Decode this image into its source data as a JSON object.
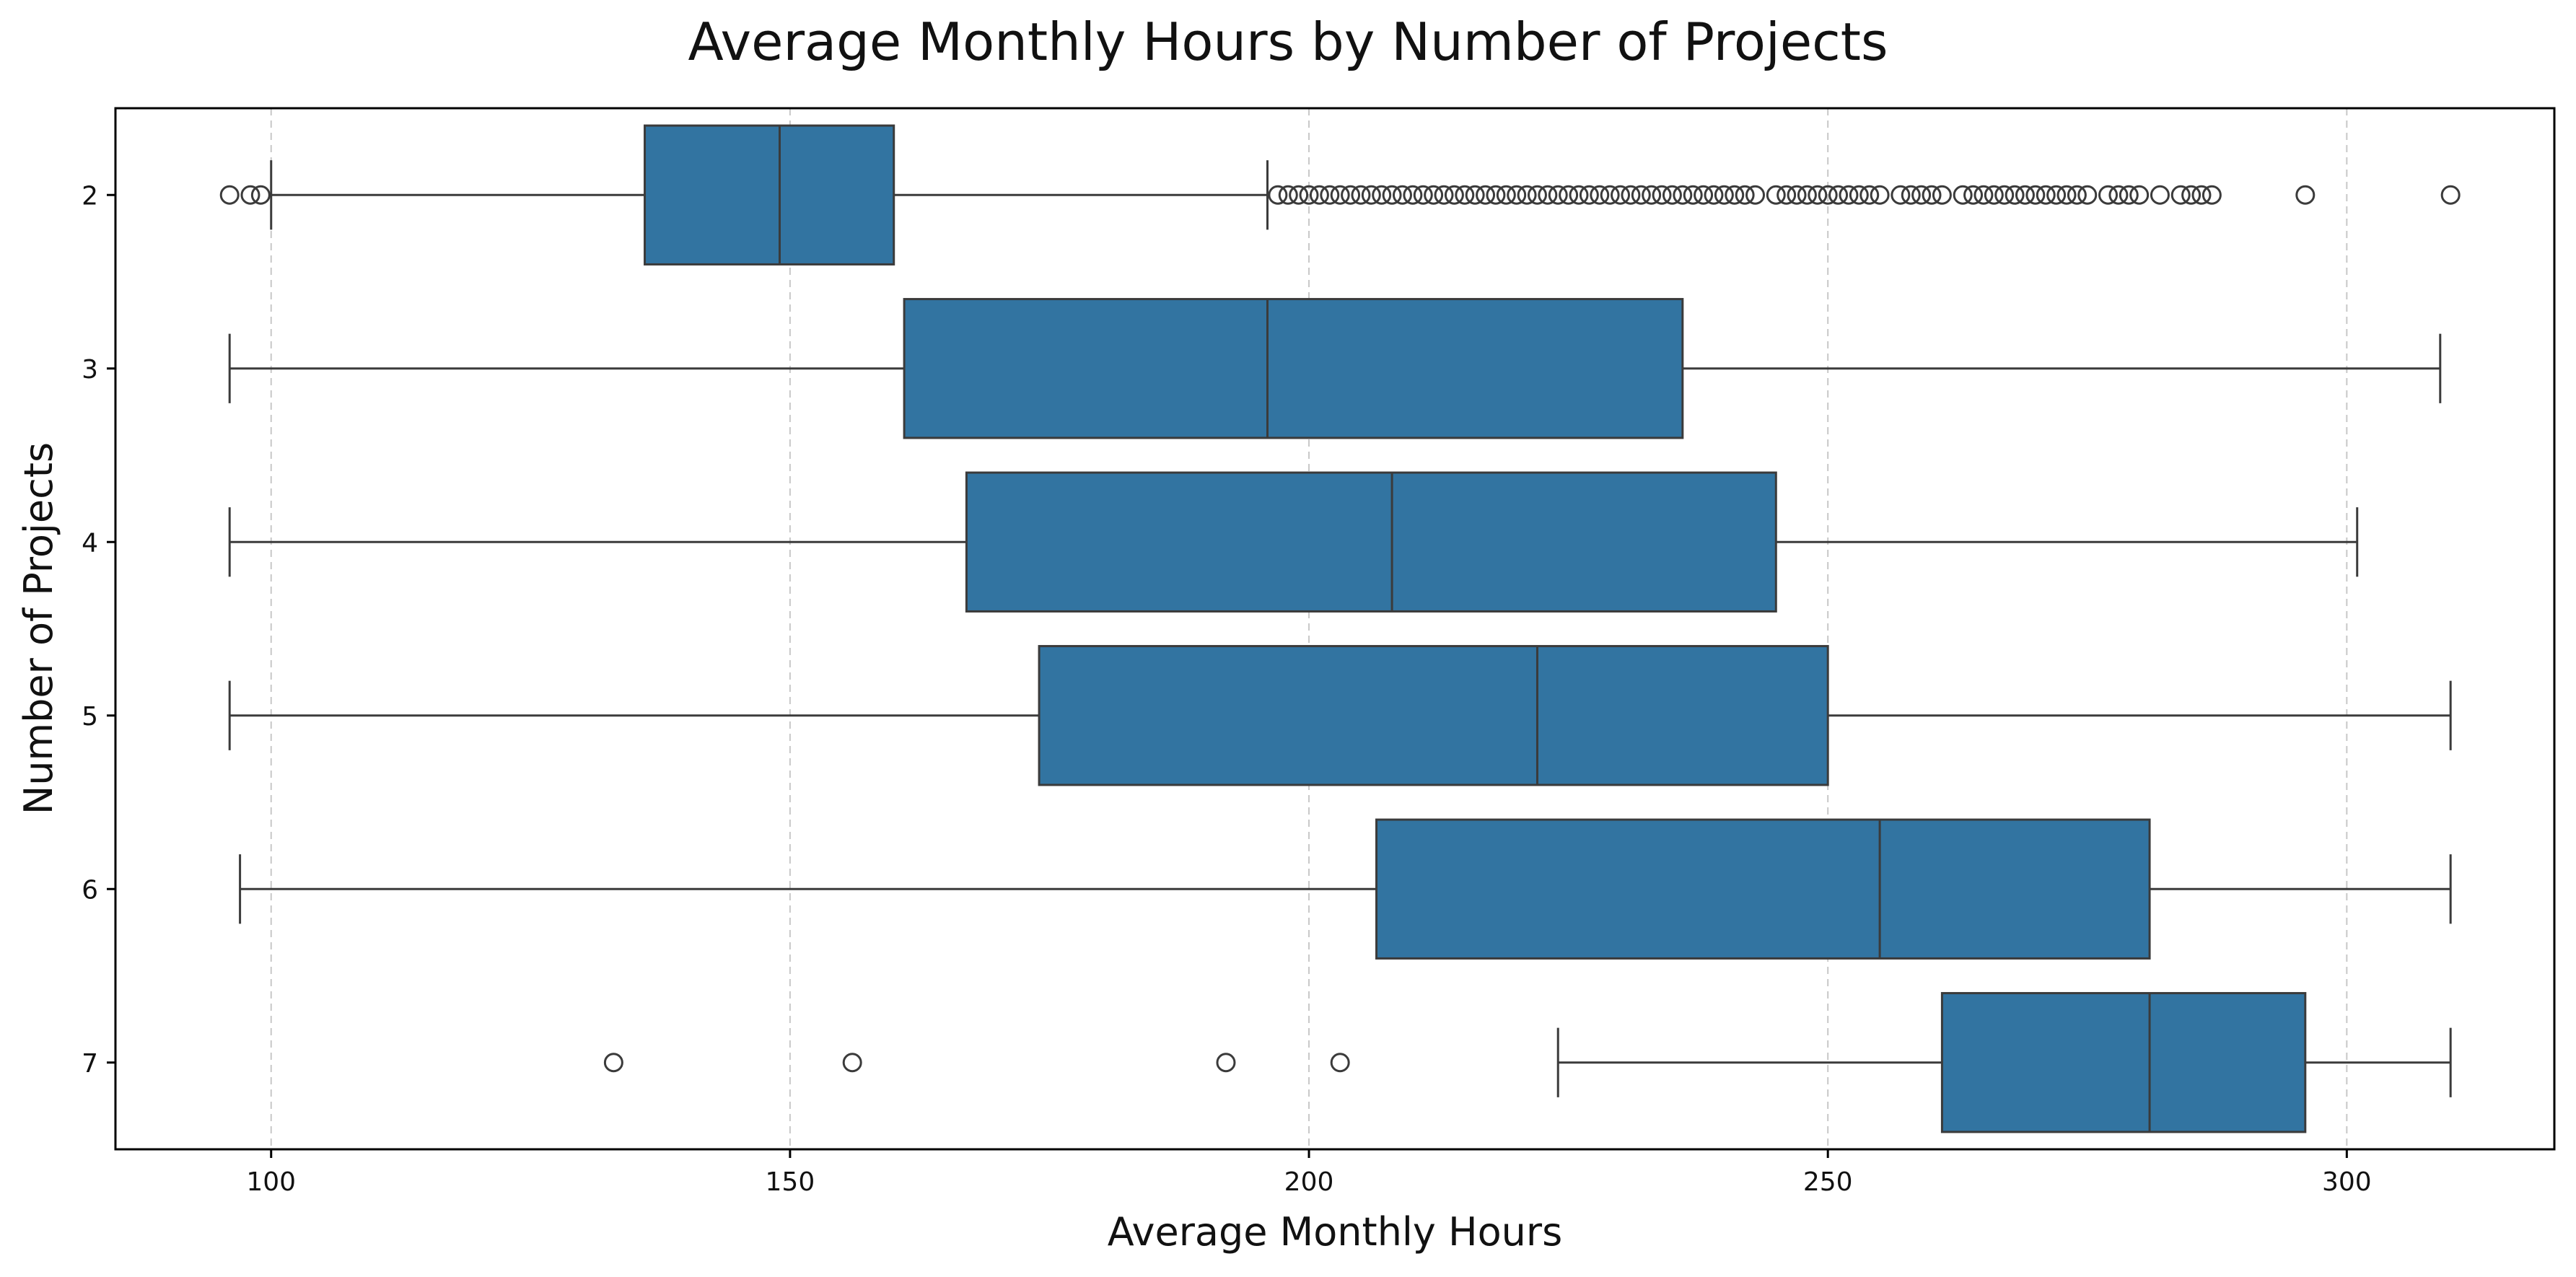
{
  "chart_data": {
    "type": "boxplot",
    "orientation": "horizontal",
    "title": "Average Monthly Hours by Number of Projects",
    "xlabel": "Average Monthly Hours",
    "ylabel": "Number of Projects",
    "xlim": [
      85,
      320
    ],
    "x_ticks": [
      100,
      150,
      200,
      250,
      300
    ],
    "grid": "vertical dashed",
    "box_color": "#3274a1",
    "categories": [
      "2",
      "3",
      "4",
      "5",
      "6",
      "7"
    ],
    "boxes": [
      {
        "category": "2",
        "whisker_low": 100,
        "q1": 136,
        "median": 149,
        "q3": 160,
        "whisker_high": 196,
        "outliers": [
          96,
          98,
          99,
          197,
          198,
          199,
          200,
          201,
          202,
          203,
          204,
          205,
          206,
          207,
          208,
          209,
          210,
          211,
          212,
          213,
          214,
          215,
          216,
          217,
          218,
          219,
          220,
          221,
          222,
          223,
          224,
          225,
          226,
          227,
          228,
          229,
          230,
          231,
          232,
          233,
          234,
          235,
          236,
          237,
          238,
          239,
          240,
          241,
          242,
          243,
          245,
          246,
          247,
          248,
          249,
          250,
          251,
          252,
          253,
          254,
          255,
          257,
          258,
          259,
          260,
          261,
          263,
          264,
          265,
          266,
          267,
          268,
          269,
          270,
          271,
          272,
          273,
          274,
          275,
          277,
          278,
          279,
          280,
          282,
          284,
          285,
          286,
          287,
          296,
          310
        ]
      },
      {
        "category": "3",
        "whisker_low": 96,
        "q1": 161,
        "median": 196,
        "q3": 236,
        "whisker_high": 309,
        "outliers": []
      },
      {
        "category": "4",
        "whisker_low": 96,
        "q1": 167,
        "median": 208,
        "q3": 245,
        "whisker_high": 301,
        "outliers": []
      },
      {
        "category": "5",
        "whisker_low": 96,
        "q1": 174,
        "median": 222,
        "q3": 250,
        "whisker_high": 310,
        "outliers": []
      },
      {
        "category": "6",
        "whisker_low": 97,
        "q1": 206.5,
        "median": 255,
        "q3": 281,
        "whisker_high": 310,
        "outliers": []
      },
      {
        "category": "7",
        "whisker_low": 224,
        "q1": 261,
        "median": 281,
        "q3": 296,
        "whisker_high": 310,
        "outliers": [
          133,
          156,
          192,
          203
        ]
      }
    ]
  }
}
